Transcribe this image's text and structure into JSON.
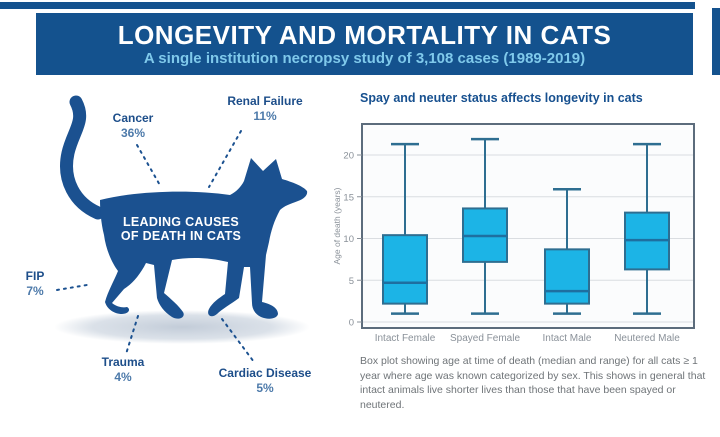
{
  "header": {
    "title": "LONGEVITY AND MORTALITY IN CATS",
    "subtitle": "A single institution necropsy study of 3,108 cases (1989-2019)",
    "banner_color": "#14528E",
    "subtitle_color": "#7FC9EB"
  },
  "cat_figure": {
    "center_label_line1": "LEADING CAUSES",
    "center_label_line2": "OF DEATH IN CATS",
    "silhouette_color": "#1B5190",
    "causes": [
      {
        "name": "Cancer",
        "pct": "36%"
      },
      {
        "name": "Renal Failure",
        "pct": "11%"
      },
      {
        "name": "FIP",
        "pct": "7%"
      },
      {
        "name": "Trauma",
        "pct": "4%"
      },
      {
        "name": "Cardiac Disease",
        "pct": "5%"
      }
    ]
  },
  "chart": {
    "title": "Spay and neuter status affects longevity in cats",
    "caption": "Box plot showing age at time of death (median and range) for all cats ≥ 1 year where age was known categorized by sex. This shows in general that intact animals live shorter lives than those that have been spayed or neutered."
  },
  "chart_data": {
    "type": "boxplot",
    "title": "Spay and neuter status affects longevity in cats",
    "ylabel": "Age of death (years)",
    "xlabel": "",
    "ylim": [
      0,
      23.5
    ],
    "yticks": [
      0,
      5,
      10,
      15,
      20
    ],
    "grid": true,
    "legend": false,
    "categories": [
      "Intact Female",
      "Spayed Female",
      "Intact Male",
      "Neutered Male"
    ],
    "series": [
      {
        "name": "Intact Female",
        "min": 1.0,
        "q1": 2.2,
        "median": 4.7,
        "q3": 10.4,
        "max": 21.3
      },
      {
        "name": "Spayed Female",
        "min": 1.0,
        "q1": 7.2,
        "median": 10.3,
        "q3": 13.6,
        "max": 21.9
      },
      {
        "name": "Intact Male",
        "min": 1.0,
        "q1": 2.2,
        "median": 3.7,
        "q3": 8.7,
        "max": 15.9
      },
      {
        "name": "Neutered Male",
        "min": 1.0,
        "q1": 6.3,
        "median": 9.8,
        "q3": 13.1,
        "max": 21.3
      }
    ],
    "box_fill": "#1CB4E6",
    "box_stroke": "#2E6E91",
    "median_color": "#1E6FA0",
    "grid_color": "#DADDE1",
    "frame_color": "#5C6C7C",
    "plot_bg": "#FBFCFD"
  }
}
